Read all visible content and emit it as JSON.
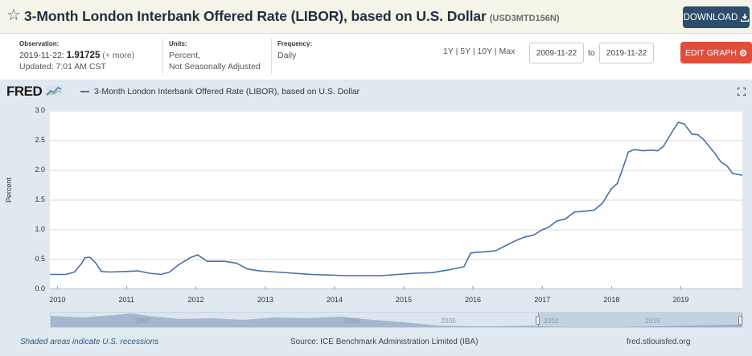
{
  "header": {
    "star_icon": "star-outline-icon",
    "title": "3-Month London Interbank Offered Rate (LIBOR), based on U.S. Dollar",
    "series_id": "(USD3MTD156N)",
    "download_label": "DOWNLOAD"
  },
  "meta": {
    "observation_label": "Observation:",
    "observation_date": "2019-11-22:",
    "observation_value": "1.91725",
    "observation_more": "(+ more)",
    "updated": "Updated: 7:01 AM CST",
    "units_label": "Units:",
    "units_line1": "Percent,",
    "units_line2": "Not Seasonally Adjusted",
    "frequency_label": "Frequency:",
    "frequency_value": "Daily"
  },
  "range": {
    "options": [
      "1Y",
      "5Y",
      "10Y",
      "Max"
    ],
    "separator": "|",
    "from": "2009-11-22",
    "to_label": "to",
    "to": "2019-11-22"
  },
  "edit_graph_label": "EDIT GRAPH",
  "graph": {
    "logo_text": "FRED",
    "legend_label": "3-Month London Interbank Offered Rate (LIBOR), based on U.S. Dollar",
    "series_color": "#4572a7",
    "navigator_labels": [
      "1990",
      "2000",
      "2005",
      "2010",
      "2015"
    ]
  },
  "chart_data": {
    "type": "line",
    "title": "3-Month London Interbank Offered Rate (LIBOR), based on U.S. Dollar",
    "xlabel": "",
    "ylabel": "Percent",
    "ylim": [
      0,
      3.0
    ],
    "xlim": [
      "2009-11-22",
      "2019-11-22"
    ],
    "y_ticks": [
      "0.0",
      "0.5",
      "1.0",
      "1.5",
      "2.0",
      "2.5",
      "3.0"
    ],
    "x_ticks": [
      "2010",
      "2011",
      "2012",
      "2013",
      "2014",
      "2015",
      "2016",
      "2017",
      "2018",
      "2019"
    ],
    "grid": true,
    "series": [
      {
        "name": "3-Month London Interbank Offered Rate (LIBOR), based on U.S. Dollar",
        "x": [
          "2009-11-22",
          "2010-02-15",
          "2010-04-01",
          "2010-05-10",
          "2010-05-25",
          "2010-06-20",
          "2010-07-20",
          "2010-08-20",
          "2010-10-01",
          "2011-01-01",
          "2011-03-01",
          "2011-05-01",
          "2011-07-01",
          "2011-08-15",
          "2011-10-01",
          "2011-12-01",
          "2012-01-10",
          "2012-03-01",
          "2012-06-01",
          "2012-08-01",
          "2012-10-01",
          "2012-12-01",
          "2013-03-01",
          "2013-06-01",
          "2013-09-01",
          "2013-12-01",
          "2014-03-01",
          "2014-06-01",
          "2014-09-01",
          "2014-12-01",
          "2015-03-01",
          "2015-06-01",
          "2015-09-01",
          "2015-11-15",
          "2015-12-20",
          "2016-01-15",
          "2016-03-01",
          "2016-05-01",
          "2016-07-01",
          "2016-08-15",
          "2016-10-01",
          "2016-11-15",
          "2016-12-31",
          "2017-02-01",
          "2017-03-20",
          "2017-05-01",
          "2017-06-20",
          "2017-08-01",
          "2017-10-01",
          "2017-11-15",
          "2017-12-31",
          "2018-02-01",
          "2018-03-01",
          "2018-03-31",
          "2018-05-01",
          "2018-06-15",
          "2018-08-01",
          "2018-09-01",
          "2018-10-01",
          "2018-11-15",
          "2018-12-20",
          "2019-01-20",
          "2019-03-01",
          "2019-04-01",
          "2019-05-01",
          "2019-06-01",
          "2019-07-01",
          "2019-08-01",
          "2019-09-01",
          "2019-10-01",
          "2019-11-22"
        ],
        "values": [
          0.25,
          0.25,
          0.29,
          0.44,
          0.53,
          0.54,
          0.45,
          0.3,
          0.29,
          0.3,
          0.31,
          0.27,
          0.25,
          0.29,
          0.41,
          0.53,
          0.58,
          0.47,
          0.47,
          0.44,
          0.34,
          0.31,
          0.29,
          0.27,
          0.25,
          0.24,
          0.23,
          0.23,
          0.23,
          0.25,
          0.27,
          0.28,
          0.33,
          0.38,
          0.61,
          0.62,
          0.63,
          0.65,
          0.75,
          0.82,
          0.88,
          0.91,
          1.0,
          1.04,
          1.15,
          1.18,
          1.3,
          1.31,
          1.33,
          1.45,
          1.69,
          1.78,
          2.03,
          2.31,
          2.35,
          2.33,
          2.34,
          2.33,
          2.4,
          2.64,
          2.81,
          2.78,
          2.61,
          2.6,
          2.52,
          2.4,
          2.28,
          2.14,
          2.08,
          1.95,
          1.91725
        ]
      }
    ]
  },
  "footer": {
    "recession_note": "Shaded areas indicate U.S. recessions",
    "source": "Source: ICE Benchmark Administration Limited (IBA)",
    "site": "fred.stlouisfed.org"
  }
}
